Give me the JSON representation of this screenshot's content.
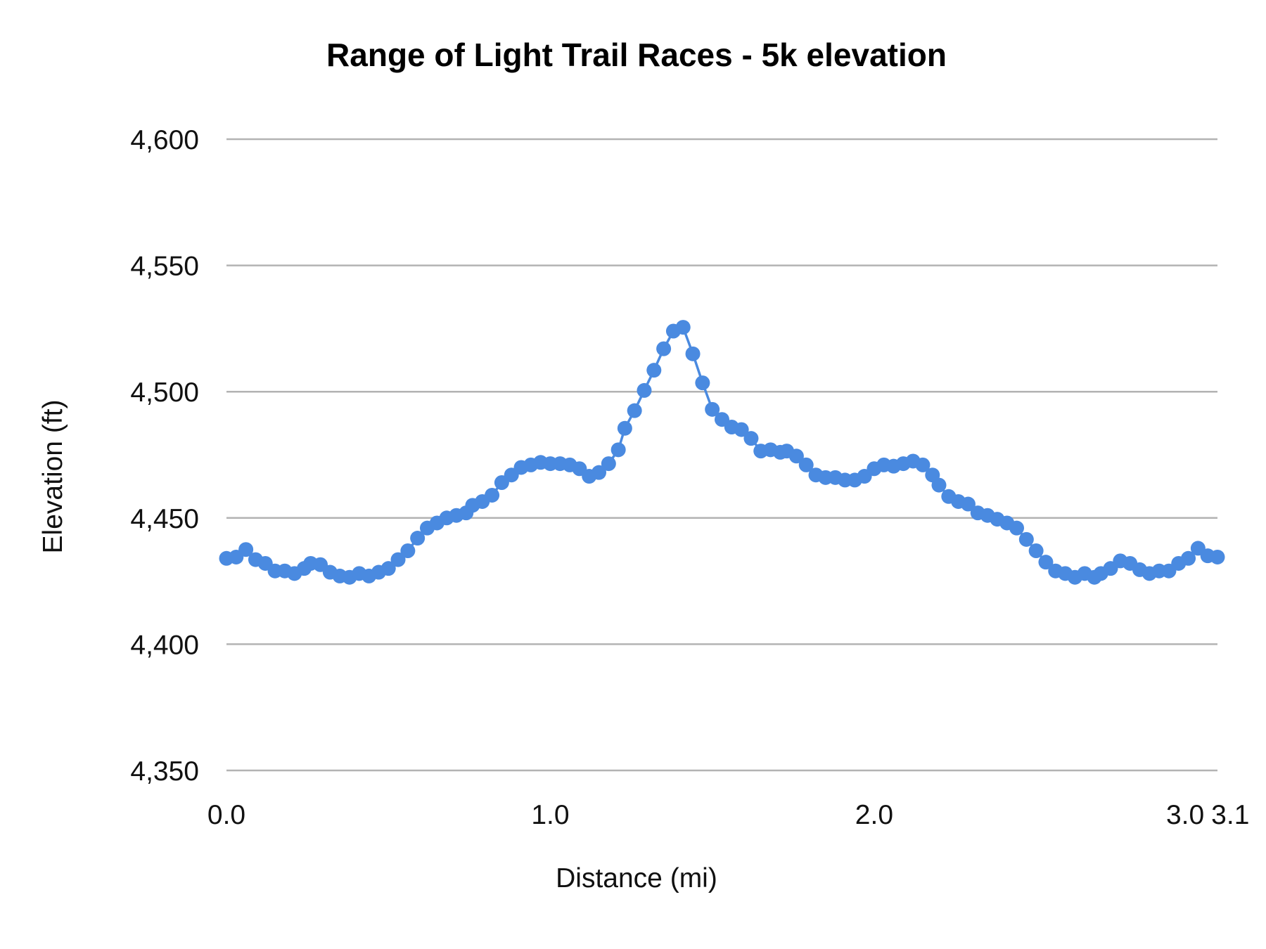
{
  "chart_data": {
    "type": "line",
    "title": "Range of Light Trail Races - 5k elevation",
    "xlabel": "Distance (mi)",
    "ylabel": "Elevation (ft)",
    "xlim": [
      0,
      3.06
    ],
    "ylim": [
      4350,
      4600
    ],
    "x_ticks": [
      {
        "value": 0,
        "label": "0.0"
      },
      {
        "value": 1,
        "label": "1.0"
      },
      {
        "value": 2,
        "label": "2.0"
      },
      {
        "value": 3,
        "label": "3.0"
      },
      {
        "value": 3.06,
        "label": "3.1"
      }
    ],
    "y_ticks": [
      {
        "value": 4600,
        "label": "4,600"
      },
      {
        "value": 4550,
        "label": "4,550"
      },
      {
        "value": 4500,
        "label": "4,500"
      },
      {
        "value": 4450,
        "label": "4,450"
      },
      {
        "value": 4400,
        "label": "4,400"
      },
      {
        "value": 4350,
        "label": "4,350"
      }
    ],
    "grid": {
      "horizontal": true,
      "vertical": false
    },
    "legend": "none",
    "colors": {
      "series": "#4a8ae0",
      "grid": "#b3b3b3"
    },
    "markers": true,
    "series": [
      {
        "x": [
          0,
          0.03,
          0.06,
          0.09,
          0.12,
          0.15,
          0.18,
          0.21,
          0.24,
          0.26,
          0.29,
          0.32,
          0.35,
          0.38,
          0.41,
          0.44,
          0.47,
          0.5,
          0.53,
          0.56,
          0.59,
          0.62,
          0.65,
          0.68,
          0.71,
          0.74,
          0.76,
          0.79,
          0.82,
          0.85,
          0.88,
          0.91,
          0.94,
          0.97,
          1.0,
          1.03,
          1.06,
          1.09,
          1.12,
          1.15,
          1.18,
          1.21,
          1.23,
          1.26,
          1.29,
          1.32,
          1.35,
          1.38,
          1.41,
          1.44,
          1.47,
          1.5,
          1.53,
          1.56,
          1.59,
          1.62,
          1.65,
          1.68,
          1.71,
          1.73,
          1.76,
          1.79,
          1.82,
          1.85,
          1.88,
          1.91,
          1.94,
          1.97,
          2.0,
          2.03,
          2.06,
          2.09,
          2.12,
          2.15,
          2.18,
          2.2,
          2.23,
          2.26,
          2.29,
          2.32,
          2.35,
          2.38,
          2.41,
          2.44,
          2.47,
          2.5,
          2.53,
          2.56,
          2.59,
          2.62,
          2.65,
          2.68,
          2.7,
          2.73,
          2.76,
          2.79,
          2.82,
          2.85,
          2.88,
          2.91,
          2.94,
          2.97,
          3.0,
          3.03,
          3.06
        ],
        "y": [
          4434,
          4434.5,
          4437.5,
          4433.5,
          4432,
          4429,
          4429,
          4428,
          4430,
          4432,
          4431.5,
          4428.5,
          4427,
          4426.5,
          4428,
          4427,
          4428.5,
          4430,
          4433.5,
          4437,
          4442,
          4446,
          4448,
          4450,
          4451,
          4452,
          4455,
          4456.5,
          4459,
          4464,
          4467,
          4470,
          4471,
          4472,
          4471.5,
          4471.5,
          4471,
          4469.5,
          4466.5,
          4468,
          4471.5,
          4477,
          4485.5,
          4492.5,
          4500.5,
          4508.5,
          4517,
          4524,
          4525.5,
          4515,
          4503.5,
          4493,
          4489,
          4486,
          4485,
          4481.5,
          4476.5,
          4477,
          4476,
          4476.5,
          4474.5,
          4471,
          4467,
          4466,
          4466,
          4465,
          4465,
          4466.5,
          4469.5,
          4471,
          4470.5,
          4471.5,
          4472.5,
          4471,
          4467,
          4463,
          4458.5,
          4456.5,
          4455.5,
          4452,
          4451,
          4449.5,
          4448,
          4446,
          4441.5,
          4437,
          4432.5,
          4429,
          4428,
          4426.5,
          4428,
          4426.5,
          4428,
          4430,
          4433,
          4432,
          4429.5,
          4428,
          4429,
          4429,
          4432,
          4434,
          4438,
          4435,
          4434.5
        ]
      }
    ]
  }
}
